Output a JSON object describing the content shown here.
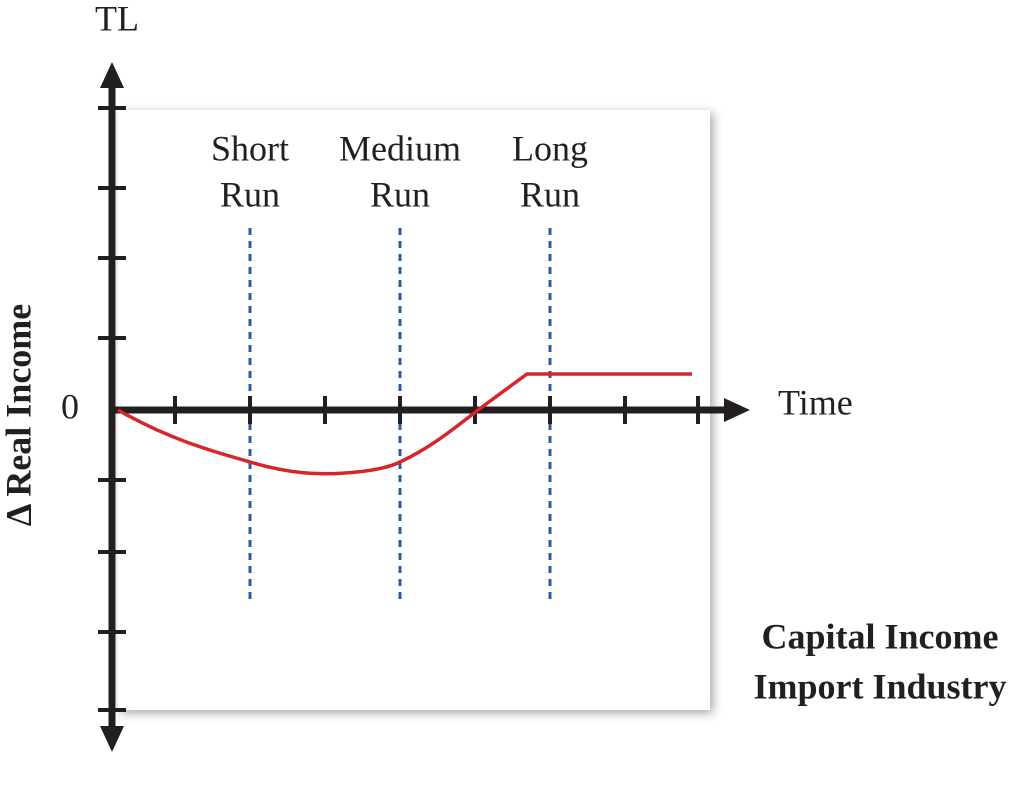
{
  "axes": {
    "y_top_label": "TL",
    "y_label": "Δ Real Income",
    "origin_label": "0",
    "x_label": "Time"
  },
  "periods": [
    {
      "lines": [
        "Short",
        "Run"
      ]
    },
    {
      "lines": [
        "Medium",
        "Run"
      ]
    },
    {
      "lines": [
        "Long",
        "Run"
      ]
    }
  ],
  "caption": {
    "lines": [
      "Capital Income",
      "Import Industry"
    ]
  }
}
